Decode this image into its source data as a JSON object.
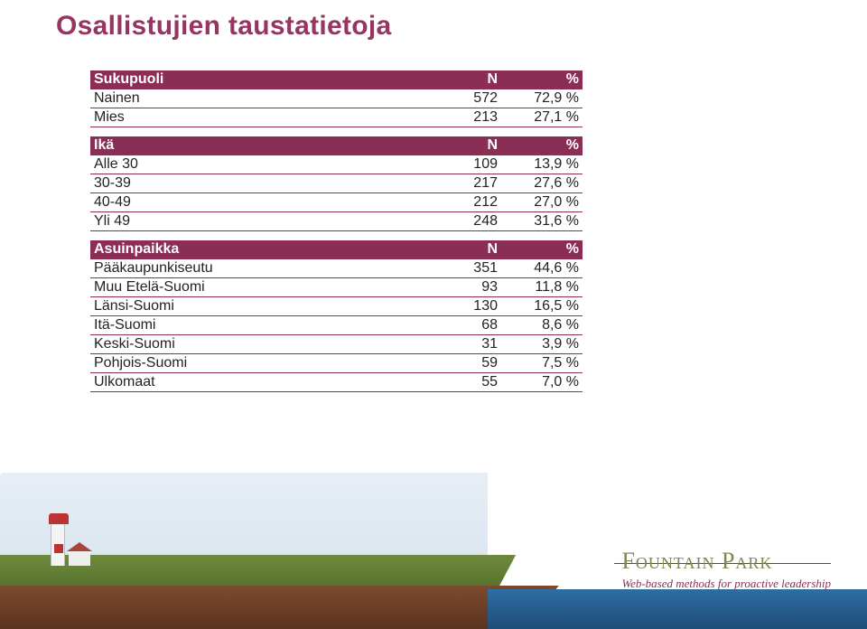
{
  "title": "Osallistujien taustatietoja",
  "tables": [
    {
      "header": {
        "label": "Sukupuoli",
        "n": "N",
        "pct": "%"
      },
      "rows": [
        {
          "label": "Nainen",
          "n": "572",
          "pct": "72,9 %"
        },
        {
          "label": "Mies",
          "n": "213",
          "pct": "27,1 %"
        }
      ]
    },
    {
      "header": {
        "label": "Ikä",
        "n": "N",
        "pct": "%"
      },
      "rows": [
        {
          "label": "Alle 30",
          "n": "109",
          "pct": "13,9 %"
        },
        {
          "label": "30-39",
          "n": "217",
          "pct": "27,6 %"
        },
        {
          "label": "40-49",
          "n": "212",
          "pct": "27,0 %"
        },
        {
          "label": "Yli 49",
          "n": "248",
          "pct": "31,6 %"
        }
      ]
    },
    {
      "header": {
        "label": "Asuinpaikka",
        "n": "N",
        "pct": "%"
      },
      "rows": [
        {
          "label": "Pääkaupunkiseutu",
          "n": "351",
          "pct": "44,6 %"
        },
        {
          "label": "Muu Etelä-Suomi",
          "n": "93",
          "pct": "11,8 %"
        },
        {
          "label": "Länsi-Suomi",
          "n": "130",
          "pct": "16,5 %"
        },
        {
          "label": "Itä-Suomi",
          "n": "68",
          "pct": "8,6 %"
        },
        {
          "label": "Keski-Suomi",
          "n": "31",
          "pct": "3,9 %"
        },
        {
          "label": "Pohjois-Suomi",
          "n": "59",
          "pct": "7,5 %"
        },
        {
          "label": "Ulkomaat",
          "n": "55",
          "pct": "7,0 %"
        }
      ]
    }
  ],
  "brand": {
    "name": "Fountain Park",
    "tagline": "Web-based methods for proactive leadership"
  },
  "colors": {
    "header_bg": "#8a2e56",
    "title_color": "#963462",
    "row_border": "#8a2e56",
    "brand_name_color": "#7a8a4a",
    "brand_tag_color": "#8a2e56"
  }
}
